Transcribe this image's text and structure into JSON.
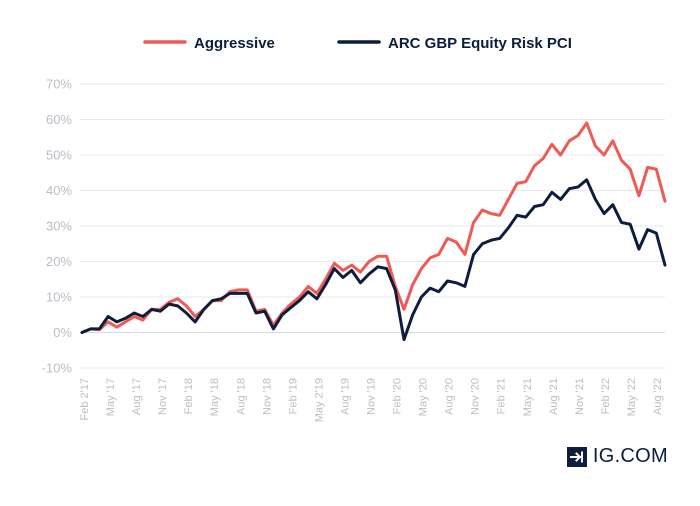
{
  "brand": {
    "name": "IG.COM",
    "icon": "arrow-in-box-icon"
  },
  "colors": {
    "aggressive": "#f05a55",
    "arc": "#0d1e3d",
    "grid": "#e6e8eb",
    "tick": "#b9bec6"
  },
  "chart_data": {
    "type": "line",
    "title": "",
    "xlabel": "",
    "ylabel": "",
    "ylim": [
      -10,
      70
    ],
    "yticks": [
      "70%",
      "60%",
      "50%",
      "40%",
      "30%",
      "20%",
      "10%",
      "0%",
      "-10%"
    ],
    "ytick_values": [
      70,
      60,
      50,
      40,
      30,
      20,
      10,
      0,
      -10
    ],
    "grid": true,
    "legend": "top-center",
    "x_labels": [
      "Feb 2'17",
      "May '17",
      "Aug '17",
      "Nov '17",
      "Feb '18",
      "May '18",
      "Aug '18",
      "Nov '18",
      "Feb '19",
      "May 2'19",
      "Aug '19",
      "Nov '19",
      "Feb '20",
      "May '20",
      "Aug '20",
      "Nov '20",
      "Feb '21",
      "May '21",
      "Aug '21",
      "Nov '21",
      "Feb '22",
      "May '22",
      "Aug '22"
    ],
    "series": [
      {
        "name": "Aggressive",
        "values": [
          0,
          1,
          0.8,
          3,
          1.5,
          3,
          4.5,
          3.5,
          6.5,
          6.5,
          8.5,
          9.5,
          7.5,
          4.5,
          6.5,
          9,
          9,
          11.5,
          12,
          12,
          6,
          6.5,
          2,
          5.5,
          8,
          10,
          13,
          11,
          15,
          19.5,
          17.5,
          19,
          17,
          20,
          21.5,
          21.5,
          13,
          6.5,
          13.5,
          18,
          21,
          22,
          26.5,
          25.5,
          22,
          31,
          34.5,
          33.5,
          33,
          37.5,
          42,
          42.5,
          47,
          49,
          53,
          50,
          54,
          55.5,
          59,
          52.5,
          50,
          54,
          48.5,
          46,
          38.5,
          46.5,
          46,
          37
        ]
      },
      {
        "name": "ARC GBP Equity Risk PCI",
        "values": [
          0,
          1,
          1,
          4.5,
          3,
          4,
          5.5,
          4.5,
          6.5,
          6,
          8,
          7.5,
          5.5,
          3,
          6.5,
          9,
          9.5,
          11,
          11,
          11,
          5.5,
          6,
          1,
          5,
          7,
          9,
          11.5,
          9.5,
          13.5,
          18,
          15.5,
          17.5,
          14,
          16.5,
          18.5,
          18,
          12,
          -2,
          5,
          10,
          12.5,
          11.5,
          14.5,
          14,
          13,
          22,
          25,
          26,
          26.5,
          29.5,
          33,
          32.5,
          35.5,
          36,
          39.5,
          37.5,
          40.5,
          41,
          43,
          37.5,
          33.5,
          36,
          31,
          30.5,
          23.5,
          29,
          28,
          19
        ]
      }
    ]
  }
}
